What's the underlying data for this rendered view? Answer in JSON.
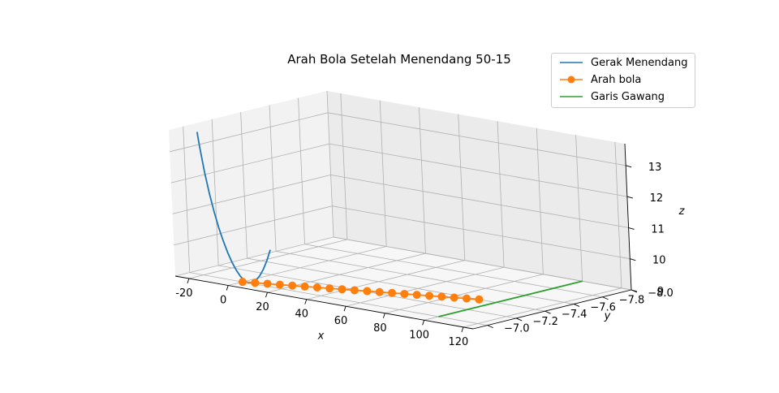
{
  "chart_data": {
    "type": "line",
    "title": "Arah Bola Setelah Menendang 50-15",
    "axes": {
      "x": {
        "label": "x",
        "range": [
          -27,
          125
        ],
        "ticks": [
          -20,
          0,
          20,
          40,
          60,
          80,
          100,
          120
        ]
      },
      "y": {
        "label": "y",
        "range": [
          -8.0,
          -6.9
        ],
        "ticks": [
          -7.0,
          -7.2,
          -7.4,
          -7.6,
          -7.8,
          -8.0
        ],
        "tick_labels": [
          "−7.0",
          "−7.2",
          "−7.4",
          "−7.6",
          "−7.8",
          "−8.0"
        ]
      },
      "z": {
        "label": "z",
        "range": [
          9.0,
          13.7
        ],
        "ticks": [
          9,
          10,
          11,
          12,
          13
        ]
      }
    },
    "grid": true,
    "legend_placement": "top-right",
    "series": [
      {
        "name": "Gerak Menendang",
        "color": "#1f77b4",
        "style": "line",
        "x": [
          -20,
          -19,
          -17,
          -15,
          -13,
          -11,
          -9,
          -7,
          -5,
          -3,
          -1,
          1,
          3,
          5,
          7,
          9,
          11,
          13,
          15
        ],
        "y": [
          -7,
          -7,
          -7,
          -7,
          -7,
          -7,
          -7,
          -7,
          -7,
          -7,
          -7,
          -7,
          -7,
          -7,
          -7,
          -7,
          -7,
          -7,
          -7
        ],
        "z": [
          13.6,
          13.13,
          12.32,
          11.66,
          11.1,
          10.62,
          10.22,
          9.87,
          9.58,
          9.35,
          9.17,
          9.05,
          9.0,
          9.03,
          9.13,
          9.3,
          9.53,
          9.83,
          10.2
        ]
      },
      {
        "name": "Arah bola",
        "color": "#ff7f0e",
        "style": "line-marker",
        "x": [
          0,
          4.81,
          9.62,
          14.42,
          19.23,
          24.04,
          28.85,
          33.65,
          38.46,
          43.27,
          48.08,
          52.88,
          57.69,
          62.5,
          67.31,
          72.12,
          76.92,
          81.73,
          86.54,
          91.35
        ],
        "y": [
          -7.0,
          -7.021,
          -7.042,
          -7.063,
          -7.084,
          -7.105,
          -7.126,
          -7.147,
          -7.168,
          -7.189,
          -7.211,
          -7.232,
          -7.253,
          -7.274,
          -7.295,
          -7.316,
          -7.337,
          -7.358,
          -7.379,
          -7.4
        ],
        "z": [
          9.0,
          9.0,
          9.0,
          9.0,
          9.0,
          9.0,
          9.0,
          9.0,
          9.0,
          9.0,
          9.0,
          9.0,
          9.0,
          9.0,
          9.0,
          9.0,
          9.0,
          9.0,
          9.0,
          9.0
        ]
      },
      {
        "name": "Garis Gawang",
        "color": "#2ca02c",
        "style": "line",
        "x": [
          100,
          100
        ],
        "y": [
          -7.0,
          -8.0
        ],
        "z": [
          9.0,
          9.0
        ]
      }
    ]
  }
}
